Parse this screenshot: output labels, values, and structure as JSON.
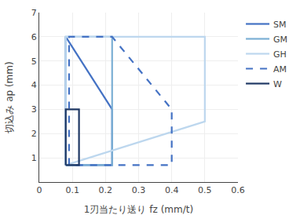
{
  "chart_data": {
    "type": "line",
    "xlabel": "1刃当たり送り fz (mm/t)",
    "ylabel": "切込み ap (mm)",
    "xlim": [
      0,
      0.6
    ],
    "ylim": [
      0,
      7
    ],
    "xticks": [
      0,
      0.1,
      0.2,
      0.3,
      0.4,
      0.5,
      0.6
    ],
    "yticks": [
      1,
      2,
      3,
      4,
      5,
      6,
      7
    ],
    "grid": true,
    "legend": "upper right",
    "series": [
      {
        "name": "SM",
        "color": "#4472C4",
        "line_style": "solid",
        "x": [
          0.08,
          0.08,
          0.22,
          0.22,
          0.08
        ],
        "values": [
          0.7,
          6.0,
          3.0,
          0.7,
          0.7
        ]
      },
      {
        "name": "GM",
        "color": "#7BAFD4",
        "line_style": "solid",
        "x": [
          0.08,
          0.08,
          0.22,
          0.22,
          0.08
        ],
        "values": [
          0.7,
          6.0,
          6.0,
          0.7,
          0.7
        ]
      },
      {
        "name": "GH",
        "color": "#BDD7EE",
        "line_style": "solid",
        "x": [
          0.08,
          0.08,
          0.5,
          0.5,
          0.08
        ],
        "values": [
          0.7,
          6.0,
          6.0,
          2.5,
          0.7
        ]
      },
      {
        "name": "AM",
        "color": "#4472C4",
        "line_style": "dashed",
        "x": [
          0.09,
          0.09,
          0.22,
          0.4,
          0.4,
          0.09
        ],
        "values": [
          0.7,
          6.0,
          6.0,
          3.0,
          0.7,
          0.7
        ]
      },
      {
        "name": "W",
        "color": "#1F3864",
        "line_style": "solid",
        "x": [
          0.08,
          0.08,
          0.12,
          0.12,
          0.08
        ],
        "values": [
          0.7,
          3.0,
          3.0,
          0.7,
          0.7
        ]
      }
    ]
  }
}
